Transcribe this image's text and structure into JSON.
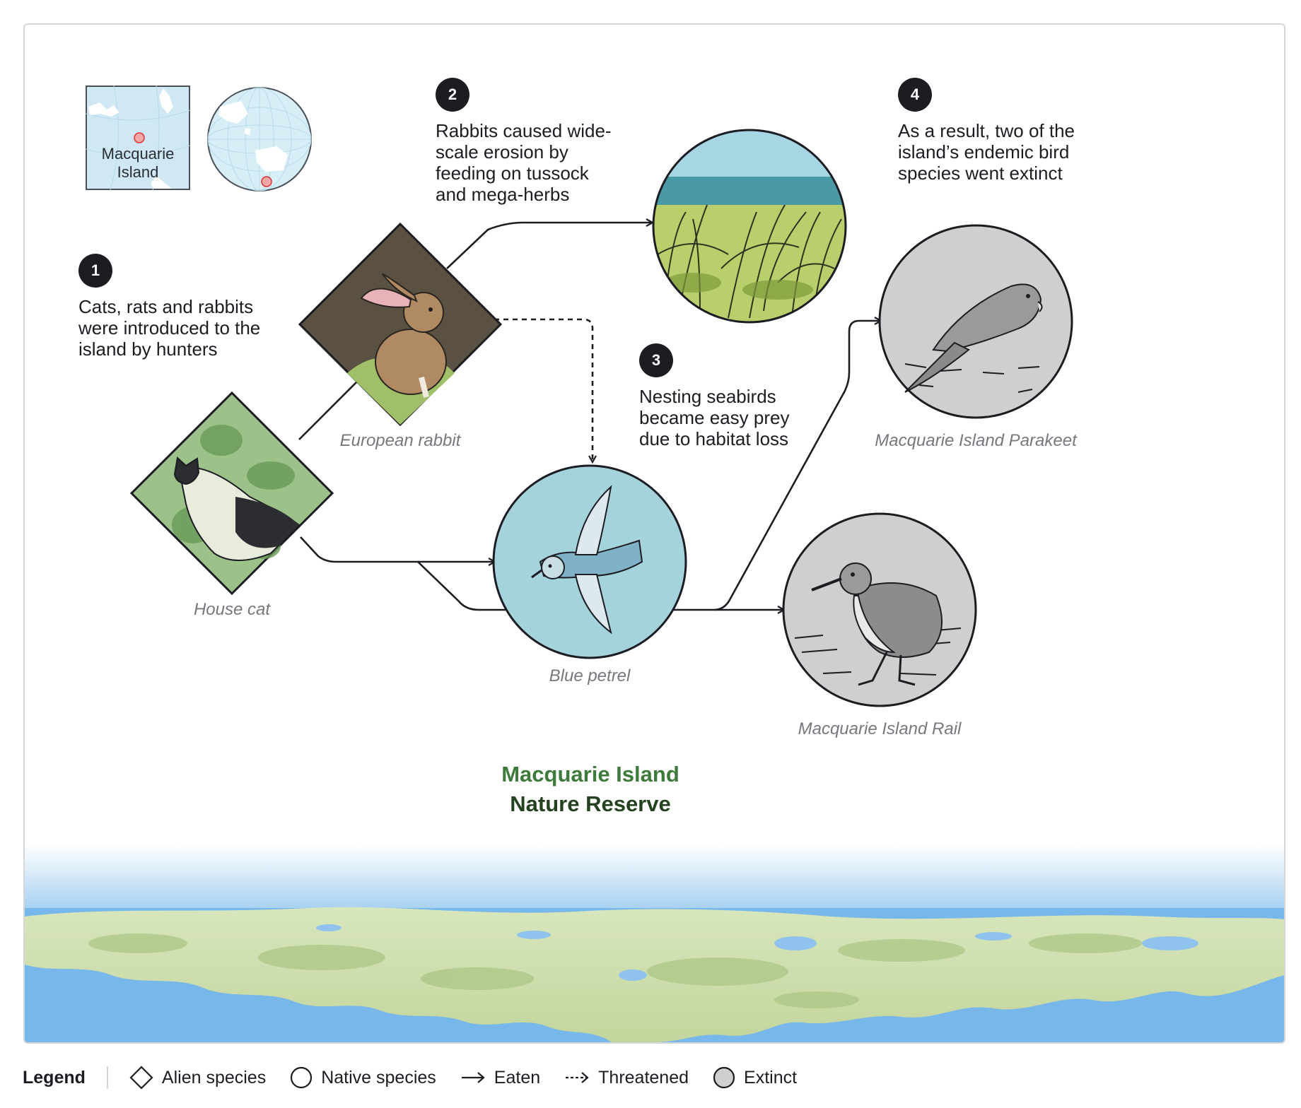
{
  "steps": [
    {
      "number": "1",
      "text": "Cats, rats and rabbits were introduced to the island by hunters"
    },
    {
      "number": "2",
      "text": "Rabbits caused wide-scale erosion by feeding on tussock and mega-herbs"
    },
    {
      "number": "3",
      "text": "Nesting seabirds became easy prey due to habitat loss"
    },
    {
      "number": "4",
      "text": "As a result, two of the island’s endemic bird species went extinct"
    }
  ],
  "species": {
    "house_cat": "House cat",
    "european_rabbit": "European rabbit",
    "blue_petrel": "Blue petrel",
    "parakeet": "Macquarie Island Parakeet",
    "rail": "Macquarie Island Rail"
  },
  "inset_map": {
    "label": "Macquarie Island"
  },
  "map_title": {
    "line1": "Macquarie Island",
    "line2": "Nature Reserve"
  },
  "legend": {
    "title": "Legend",
    "alien": "Alien species",
    "native": "Native species",
    "eaten": "Eaten",
    "threatened": "Threatened",
    "extinct": "Extinct"
  },
  "colors": {
    "ink": "#1c1d22",
    "rabbit_bg": "#5b5142",
    "cat_bg": "#9cc28a",
    "petrel_bg": "#a5d3dc",
    "extinct_bg": "#cfcfcf",
    "sea": "#74b6e8",
    "land": "#c8dba4"
  }
}
